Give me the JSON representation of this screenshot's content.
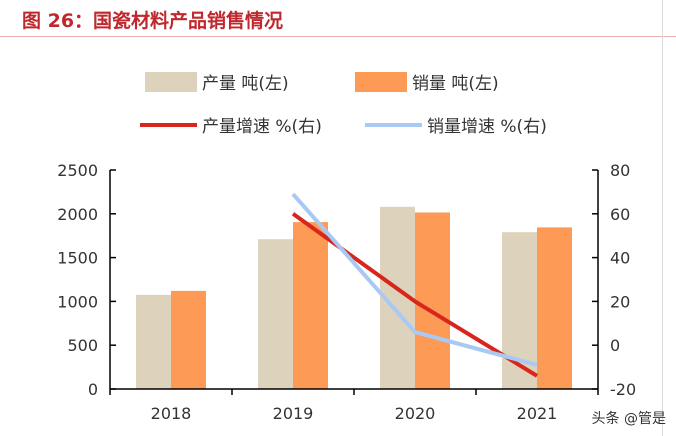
{
  "title": "图 26：国瓷材料产品销售情况",
  "watermark": "头条 @管是",
  "chart_data": {
    "type": "bar+line",
    "categories": [
      "2018",
      "2019",
      "2020",
      "2021"
    ],
    "series": [
      {
        "name": "产量 吨(左)",
        "type": "bar",
        "axis": "left",
        "color": "#ddd3bc",
        "values": [
          1075,
          1710,
          2080,
          1790
        ]
      },
      {
        "name": "销量 吨(左)",
        "type": "bar",
        "axis": "left",
        "color": "#fd9a55",
        "values": [
          1120,
          1905,
          2015,
          1845
        ]
      },
      {
        "name": "产量增速 %(右)",
        "type": "line",
        "axis": "right",
        "color": "#d9261c",
        "values": [
          null,
          60,
          20,
          -14
        ]
      },
      {
        "name": "销量增速 %(右)",
        "type": "line",
        "axis": "right",
        "color": "#a9c9f5",
        "values": [
          null,
          69,
          6,
          -9
        ]
      }
    ],
    "ylim_left": [
      0,
      2500
    ],
    "yticks_left": [
      0,
      500,
      1000,
      1500,
      2000,
      2500
    ],
    "ylim_right": [
      -20,
      80
    ],
    "yticks_right": [
      -20,
      0,
      20,
      40,
      60,
      80
    ],
    "legend": "top",
    "grid": false
  }
}
